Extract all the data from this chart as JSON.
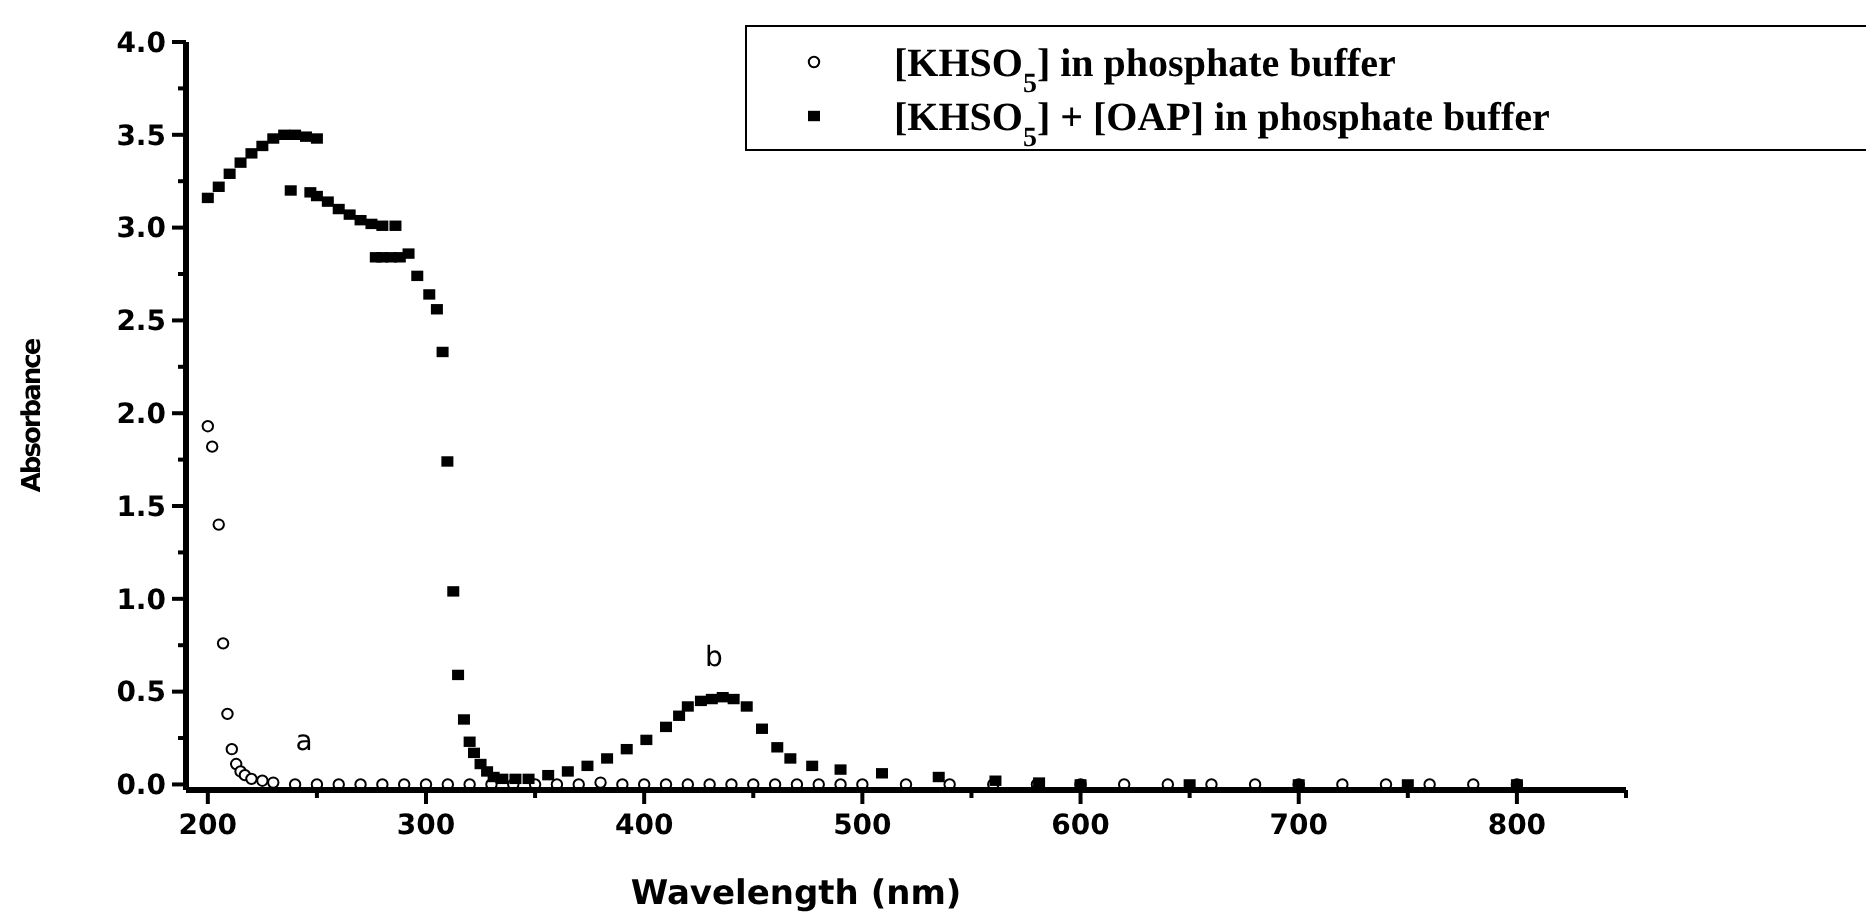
{
  "chart_data": {
    "type": "scatter",
    "xlabel": "Wavelength (nm)",
    "ylabel": "Absorbance",
    "xlim": [
      190,
      850
    ],
    "ylim": [
      -0.03,
      4
    ],
    "xticks": [
      200,
      {
        "value": 250,
        "label": null
      },
      300,
      {
        "value": 350,
        "label": null
      },
      400,
      {
        "value": 450,
        "label": null
      },
      500,
      {
        "value": 550,
        "label": null
      },
      600,
      {
        "value": 650,
        "label": null
      },
      700,
      {
        "value": 750,
        "label": null
      },
      800,
      {
        "value": 850,
        "label": null
      }
    ],
    "yticks": [
      {
        "value": 0,
        "label": "0.0"
      },
      {
        "value": 0.25,
        "label": null
      },
      {
        "value": 0.5,
        "label": "0.5"
      },
      {
        "value": 0.75,
        "label": null
      },
      {
        "value": 1,
        "label": "1.0"
      },
      {
        "value": 1.25,
        "label": null
      },
      {
        "value": 1.5,
        "label": "1.5"
      },
      {
        "value": 1.75,
        "label": null
      },
      {
        "value": 2,
        "label": "2.0"
      },
      {
        "value": 2.25,
        "label": null
      },
      {
        "value": 2.5,
        "label": "2.5"
      },
      {
        "value": 2.75,
        "label": null
      },
      {
        "value": 3,
        "label": "3.0"
      },
      {
        "value": 3.25,
        "label": null
      },
      {
        "value": 3.5,
        "label": "3.5"
      },
      {
        "value": 3.75,
        "label": null
      },
      {
        "value": 4,
        "label": "4.0"
      }
    ],
    "grid": false,
    "legend": "top right",
    "series": [
      {
        "name": "[KHSO$_{5}$] in phosphate buffer",
        "color": "#000000",
        "marker": "circle",
        "x": [
          200,
          202,
          205,
          207,
          209,
          211,
          213,
          215,
          217,
          220,
          225,
          230,
          240,
          250,
          260,
          270,
          280,
          290,
          300,
          310,
          320,
          330,
          340,
          350,
          360,
          370,
          380,
          390,
          400,
          410,
          420,
          430,
          440,
          450,
          460,
          470,
          480,
          490,
          500,
          520,
          540,
          560,
          580,
          600,
          620,
          640,
          660,
          680,
          700,
          720,
          740,
          760,
          780,
          800
        ],
        "values": [
          1.93,
          1.82,
          1.4,
          0.76,
          0.38,
          0.19,
          0.11,
          0.07,
          0.05,
          0.03,
          0.02,
          0.01,
          0,
          0,
          0,
          0,
          0,
          0,
          0,
          0,
          0,
          0,
          0,
          0,
          0,
          0,
          0.01,
          0,
          0,
          0,
          0,
          0,
          0,
          0,
          0,
          0,
          0,
          0,
          0,
          0,
          0,
          0,
          0,
          0,
          0,
          0,
          0,
          0,
          0,
          0,
          0,
          0,
          0,
          0
        ]
      },
      {
        "name": "[KHSO$_{5}$] + [OAP] in phosphate buffer",
        "color": "#000000",
        "marker": "square",
        "x": [
          200,
          205,
          210,
          215,
          220,
          225,
          230,
          235,
          240,
          245,
          250,
          238,
          247,
          250,
          255,
          260,
          265,
          270,
          275,
          280,
          286,
          277,
          280,
          284,
          288,
          292,
          296,
          301.5,
          305,
          307.6,
          309.8,
          312.5,
          314.7,
          317.4,
          320,
          322,
          325,
          328,
          331,
          335,
          341,
          347,
          356,
          365,
          374,
          383,
          392,
          401,
          410,
          416,
          420,
          426,
          431,
          436,
          441,
          447,
          454,
          461,
          467,
          477,
          490,
          509,
          535,
          561,
          581,
          600,
          650,
          700,
          750,
          800
        ],
        "values": [
          3.16,
          3.22,
          3.29,
          3.35,
          3.4,
          3.44,
          3.48,
          3.5,
          3.5,
          3.49,
          3.48,
          3.2,
          3.19,
          3.17,
          3.14,
          3.1,
          3.07,
          3.04,
          3.02,
          3.01,
          3.01,
          2.84,
          2.84,
          2.84,
          2.84,
          2.86,
          2.74,
          2.64,
          2.56,
          2.33,
          1.74,
          1.04,
          0.59,
          0.35,
          0.23,
          0.17,
          0.11,
          0.07,
          0.04,
          0.03,
          0.03,
          0.03,
          0.05,
          0.07,
          0.1,
          0.14,
          0.19,
          0.24,
          0.31,
          0.37,
          0.42,
          0.45,
          0.46,
          0.47,
          0.46,
          0.42,
          0.3,
          0.2,
          0.14,
          0.1,
          0.08,
          0.06,
          0.04,
          0.02,
          0.01,
          0,
          0,
          0,
          0,
          0
        ]
      }
    ],
    "annotations": [
      "a",
      "b"
    ]
  }
}
